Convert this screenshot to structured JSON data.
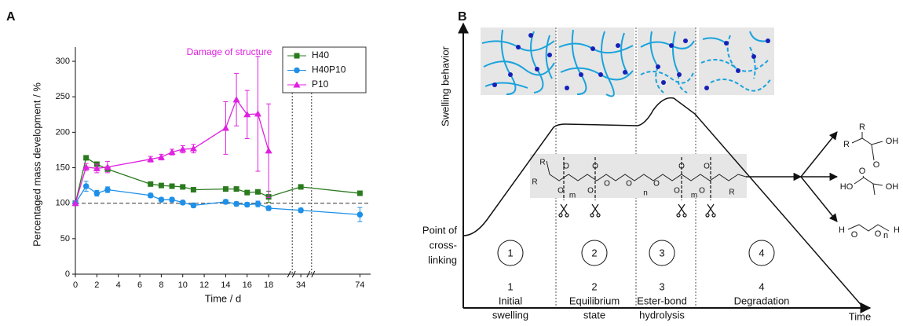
{
  "panel_labels": [
    "A",
    "B"
  ],
  "chart_data": {
    "type": "line",
    "xlabel": "Time / d",
    "ylabel": "Percentaged mass development / %",
    "annotation": "Damage of structure",
    "x": [
      0,
      1,
      2,
      3,
      7,
      8,
      9,
      10,
      11,
      14,
      15,
      16,
      17,
      18,
      34,
      74
    ],
    "series": [
      {
        "name": "H40",
        "color": "#2a7a1e",
        "marker": "square",
        "values": [
          100,
          164,
          155,
          148,
          127,
          125,
          124,
          123,
          119,
          120,
          120,
          115,
          116,
          109,
          123,
          114
        ],
        "errors": [
          0,
          3,
          3,
          3,
          2,
          2,
          2,
          2,
          2,
          3,
          3,
          3,
          3,
          8,
          3,
          3
        ]
      },
      {
        "name": "H40P10",
        "color": "#1e90e8",
        "marker": "circle",
        "values": [
          100,
          124,
          114,
          119,
          111,
          105,
          105,
          101,
          97,
          102,
          99,
          98,
          99,
          93,
          90,
          84
        ],
        "errors": [
          0,
          7,
          4,
          4,
          3,
          3,
          3,
          3,
          3,
          3,
          3,
          3,
          4,
          3,
          3,
          10
        ]
      },
      {
        "name": "P10",
        "color": "#e020e0",
        "marker": "triangle",
        "values": [
          100,
          151,
          149,
          151,
          162,
          165,
          172,
          176,
          177,
          206,
          246,
          225,
          226,
          174,
          null,
          null
        ],
        "errors": [
          0,
          5,
          6,
          8,
          4,
          4,
          4,
          5,
          6,
          37,
          37,
          34,
          81,
          66,
          null,
          null
        ]
      }
    ],
    "xlim": [
      0,
      75
    ],
    "xbreaks": [
      [
        20.2,
        33.2
      ],
      [
        35,
        69.5
      ]
    ],
    "xticks": [
      0,
      2,
      4,
      6,
      8,
      10,
      12,
      14,
      16,
      18,
      34,
      74
    ],
    "ylim": [
      0,
      320
    ],
    "yticks": [
      0,
      50,
      100,
      150,
      200,
      250,
      300
    ],
    "reference_line": 100,
    "legend": "upper right"
  },
  "panel_b": {
    "y_axis_label": "Swelling behavior",
    "x_axis_label": "Time",
    "origin_label": [
      "Point of",
      "cross-",
      "linking"
    ],
    "phases": [
      {
        "circle": "1",
        "number": "1",
        "name": [
          "Initial",
          "swelling"
        ]
      },
      {
        "circle": "2",
        "number": "2",
        "name": [
          "Equilibrium",
          "state"
        ]
      },
      {
        "circle": "3",
        "number": "3",
        "name": [
          "Ester-bond",
          "hydrolysis"
        ]
      },
      {
        "circle": "4",
        "number": "4",
        "name": [
          "Degradation"
        ]
      }
    ],
    "polymer_atoms": [
      "R",
      "R",
      "O",
      "O",
      "m",
      "O",
      "O",
      "O",
      "O",
      "n",
      "O",
      "O",
      "O",
      "O",
      "O",
      "m",
      "R"
    ],
    "products": [
      [
        "R",
        "R",
        "OH",
        "O"
      ],
      [
        "O",
        "HO",
        "OH"
      ],
      [
        "H",
        "O",
        "O",
        "n",
        "H"
      ]
    ]
  }
}
